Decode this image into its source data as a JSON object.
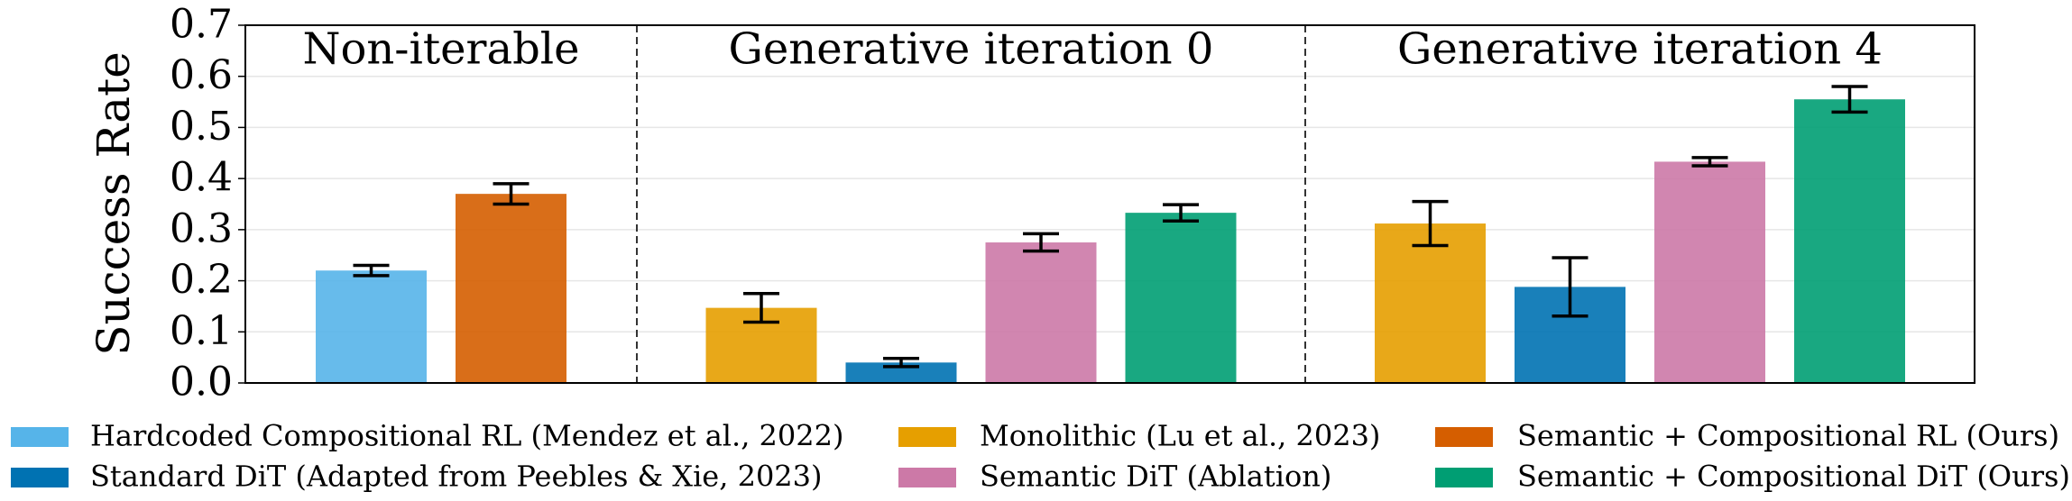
{
  "chart_data": {
    "type": "bar",
    "ylabel": "Success Rate",
    "categories": [
      "Non-iterable",
      "Generative iteration 0",
      "Generative iteration 4"
    ],
    "ylim": [
      0,
      0.7
    ],
    "yticks": [
      {
        "value": 0,
        "label": "0.0"
      },
      0.1,
      0.2,
      0.3,
      0.4,
      0.5,
      0.6,
      0.7
    ],
    "grid": true,
    "legend": "bottom",
    "series": [
      {
        "name": "Hardcoded Compositional RL (Mendez et al., 2022)",
        "color": "#56b4e9",
        "values": [
          0.22,
          null,
          null
        ],
        "errors": [
          0.01,
          null,
          null
        ]
      },
      {
        "name": "Monolithic (Lu et al., 2023)",
        "color": "#e69f00",
        "values": [
          null,
          0.147,
          0.312
        ],
        "errors": [
          null,
          0.028,
          0.043
        ]
      },
      {
        "name": "Semantic + Compositional RL (Ours)",
        "color": "#d55e00",
        "values": [
          0.37,
          null,
          null
        ],
        "errors": [
          0.02,
          null,
          null
        ]
      },
      {
        "name": "Standard DiT (Adapted from Peebles & Xie, 2023)",
        "color": "#0072b2",
        "values": [
          null,
          0.04,
          0.188
        ],
        "errors": [
          null,
          0.008,
          0.057
        ]
      },
      {
        "name": "Semantic DiT (Ablation)",
        "color": "#cc79a7",
        "values": [
          null,
          0.275,
          0.433
        ],
        "errors": [
          null,
          0.017,
          0.008
        ]
      },
      {
        "name": "Semantic + Compositional DiT (Ours)",
        "color": "#009e73",
        "values": [
          null,
          0.333,
          0.555
        ],
        "errors": [
          null,
          0.016,
          0.025
        ]
      }
    ]
  }
}
